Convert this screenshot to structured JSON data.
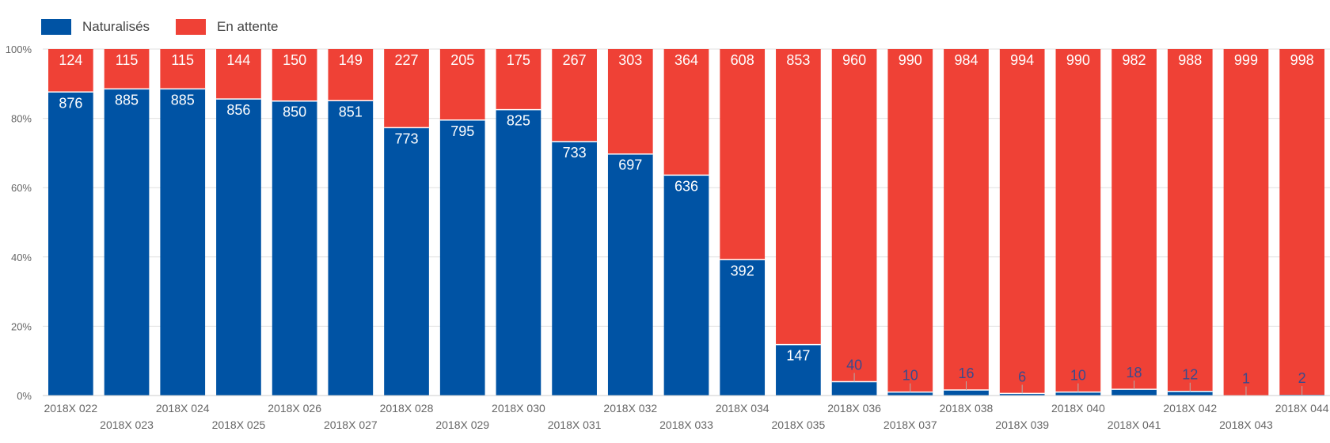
{
  "colors": {
    "naturalises": "#0053a4",
    "en_attente": "#ef4136",
    "grid": "#e0e0e0",
    "axis_text": "#666666",
    "outside_label": "#3b4a8c"
  },
  "chart_data": {
    "type": "bar",
    "stacked": true,
    "normalized": true,
    "ylim": [
      0,
      100
    ],
    "yticks": [
      "0%",
      "20%",
      "40%",
      "60%",
      "80%",
      "100%"
    ],
    "grid": true,
    "legend_position": "top-left",
    "categories": [
      "2018X 022",
      "2018X 023",
      "2018X 024",
      "2018X 025",
      "2018X 026",
      "2018X 027",
      "2018X 028",
      "2018X 029",
      "2018X 030",
      "2018X 031",
      "2018X 032",
      "2018X 033",
      "2018X 034",
      "2018X 035",
      "2018X 036",
      "2018X 037",
      "2018X 038",
      "2018X 039",
      "2018X 040",
      "2018X 041",
      "2018X 042",
      "2018X 043",
      "2018X 044"
    ],
    "series": [
      {
        "name": "Naturalisés",
        "values": [
          876,
          885,
          885,
          856,
          850,
          851,
          773,
          795,
          825,
          733,
          697,
          636,
          392,
          147,
          40,
          10,
          16,
          6,
          10,
          18,
          12,
          1,
          2
        ]
      },
      {
        "name": "En attente",
        "values": [
          124,
          115,
          115,
          144,
          150,
          149,
          227,
          205,
          175,
          267,
          303,
          364,
          608,
          853,
          960,
          990,
          984,
          994,
          990,
          982,
          988,
          999,
          998
        ]
      }
    ]
  }
}
